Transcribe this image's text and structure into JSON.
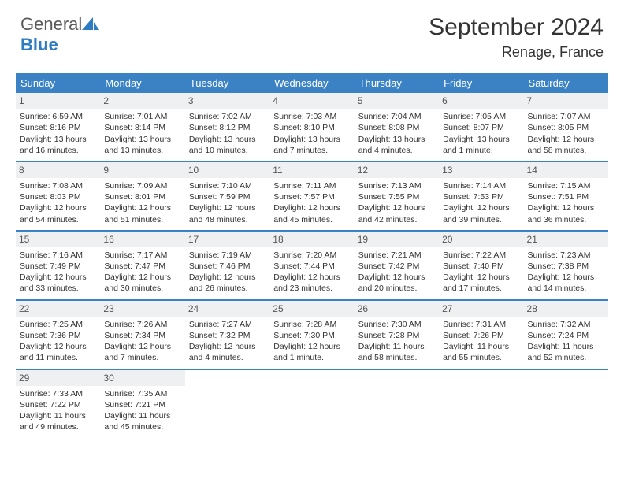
{
  "brand": {
    "part1": "General",
    "part2": "Blue"
  },
  "title": "September 2024",
  "location": "Renage, France",
  "colors": {
    "header_bg": "#3b82c4",
    "daynum_bg": "#eef0f1",
    "text": "#333333",
    "brand_gray": "#5a5a5a",
    "brand_blue": "#2d7bc0"
  },
  "day_names": [
    "Sunday",
    "Monday",
    "Tuesday",
    "Wednesday",
    "Thursday",
    "Friday",
    "Saturday"
  ],
  "weeks": [
    [
      {
        "n": "1",
        "sr": "Sunrise: 6:59 AM",
        "ss": "Sunset: 8:16 PM",
        "dl": "Daylight: 13 hours and 16 minutes."
      },
      {
        "n": "2",
        "sr": "Sunrise: 7:01 AM",
        "ss": "Sunset: 8:14 PM",
        "dl": "Daylight: 13 hours and 13 minutes."
      },
      {
        "n": "3",
        "sr": "Sunrise: 7:02 AM",
        "ss": "Sunset: 8:12 PM",
        "dl": "Daylight: 13 hours and 10 minutes."
      },
      {
        "n": "4",
        "sr": "Sunrise: 7:03 AM",
        "ss": "Sunset: 8:10 PM",
        "dl": "Daylight: 13 hours and 7 minutes."
      },
      {
        "n": "5",
        "sr": "Sunrise: 7:04 AM",
        "ss": "Sunset: 8:08 PM",
        "dl": "Daylight: 13 hours and 4 minutes."
      },
      {
        "n": "6",
        "sr": "Sunrise: 7:05 AM",
        "ss": "Sunset: 8:07 PM",
        "dl": "Daylight: 13 hours and 1 minute."
      },
      {
        "n": "7",
        "sr": "Sunrise: 7:07 AM",
        "ss": "Sunset: 8:05 PM",
        "dl": "Daylight: 12 hours and 58 minutes."
      }
    ],
    [
      {
        "n": "8",
        "sr": "Sunrise: 7:08 AM",
        "ss": "Sunset: 8:03 PM",
        "dl": "Daylight: 12 hours and 54 minutes."
      },
      {
        "n": "9",
        "sr": "Sunrise: 7:09 AM",
        "ss": "Sunset: 8:01 PM",
        "dl": "Daylight: 12 hours and 51 minutes."
      },
      {
        "n": "10",
        "sr": "Sunrise: 7:10 AM",
        "ss": "Sunset: 7:59 PM",
        "dl": "Daylight: 12 hours and 48 minutes."
      },
      {
        "n": "11",
        "sr": "Sunrise: 7:11 AM",
        "ss": "Sunset: 7:57 PM",
        "dl": "Daylight: 12 hours and 45 minutes."
      },
      {
        "n": "12",
        "sr": "Sunrise: 7:13 AM",
        "ss": "Sunset: 7:55 PM",
        "dl": "Daylight: 12 hours and 42 minutes."
      },
      {
        "n": "13",
        "sr": "Sunrise: 7:14 AM",
        "ss": "Sunset: 7:53 PM",
        "dl": "Daylight: 12 hours and 39 minutes."
      },
      {
        "n": "14",
        "sr": "Sunrise: 7:15 AM",
        "ss": "Sunset: 7:51 PM",
        "dl": "Daylight: 12 hours and 36 minutes."
      }
    ],
    [
      {
        "n": "15",
        "sr": "Sunrise: 7:16 AM",
        "ss": "Sunset: 7:49 PM",
        "dl": "Daylight: 12 hours and 33 minutes."
      },
      {
        "n": "16",
        "sr": "Sunrise: 7:17 AM",
        "ss": "Sunset: 7:47 PM",
        "dl": "Daylight: 12 hours and 30 minutes."
      },
      {
        "n": "17",
        "sr": "Sunrise: 7:19 AM",
        "ss": "Sunset: 7:46 PM",
        "dl": "Daylight: 12 hours and 26 minutes."
      },
      {
        "n": "18",
        "sr": "Sunrise: 7:20 AM",
        "ss": "Sunset: 7:44 PM",
        "dl": "Daylight: 12 hours and 23 minutes."
      },
      {
        "n": "19",
        "sr": "Sunrise: 7:21 AM",
        "ss": "Sunset: 7:42 PM",
        "dl": "Daylight: 12 hours and 20 minutes."
      },
      {
        "n": "20",
        "sr": "Sunrise: 7:22 AM",
        "ss": "Sunset: 7:40 PM",
        "dl": "Daylight: 12 hours and 17 minutes."
      },
      {
        "n": "21",
        "sr": "Sunrise: 7:23 AM",
        "ss": "Sunset: 7:38 PM",
        "dl": "Daylight: 12 hours and 14 minutes."
      }
    ],
    [
      {
        "n": "22",
        "sr": "Sunrise: 7:25 AM",
        "ss": "Sunset: 7:36 PM",
        "dl": "Daylight: 12 hours and 11 minutes."
      },
      {
        "n": "23",
        "sr": "Sunrise: 7:26 AM",
        "ss": "Sunset: 7:34 PM",
        "dl": "Daylight: 12 hours and 7 minutes."
      },
      {
        "n": "24",
        "sr": "Sunrise: 7:27 AM",
        "ss": "Sunset: 7:32 PM",
        "dl": "Daylight: 12 hours and 4 minutes."
      },
      {
        "n": "25",
        "sr": "Sunrise: 7:28 AM",
        "ss": "Sunset: 7:30 PM",
        "dl": "Daylight: 12 hours and 1 minute."
      },
      {
        "n": "26",
        "sr": "Sunrise: 7:30 AM",
        "ss": "Sunset: 7:28 PM",
        "dl": "Daylight: 11 hours and 58 minutes."
      },
      {
        "n": "27",
        "sr": "Sunrise: 7:31 AM",
        "ss": "Sunset: 7:26 PM",
        "dl": "Daylight: 11 hours and 55 minutes."
      },
      {
        "n": "28",
        "sr": "Sunrise: 7:32 AM",
        "ss": "Sunset: 7:24 PM",
        "dl": "Daylight: 11 hours and 52 minutes."
      }
    ],
    [
      {
        "n": "29",
        "sr": "Sunrise: 7:33 AM",
        "ss": "Sunset: 7:22 PM",
        "dl": "Daylight: 11 hours and 49 minutes."
      },
      {
        "n": "30",
        "sr": "Sunrise: 7:35 AM",
        "ss": "Sunset: 7:21 PM",
        "dl": "Daylight: 11 hours and 45 minutes."
      },
      {
        "empty": true
      },
      {
        "empty": true
      },
      {
        "empty": true
      },
      {
        "empty": true
      },
      {
        "empty": true
      }
    ]
  ]
}
